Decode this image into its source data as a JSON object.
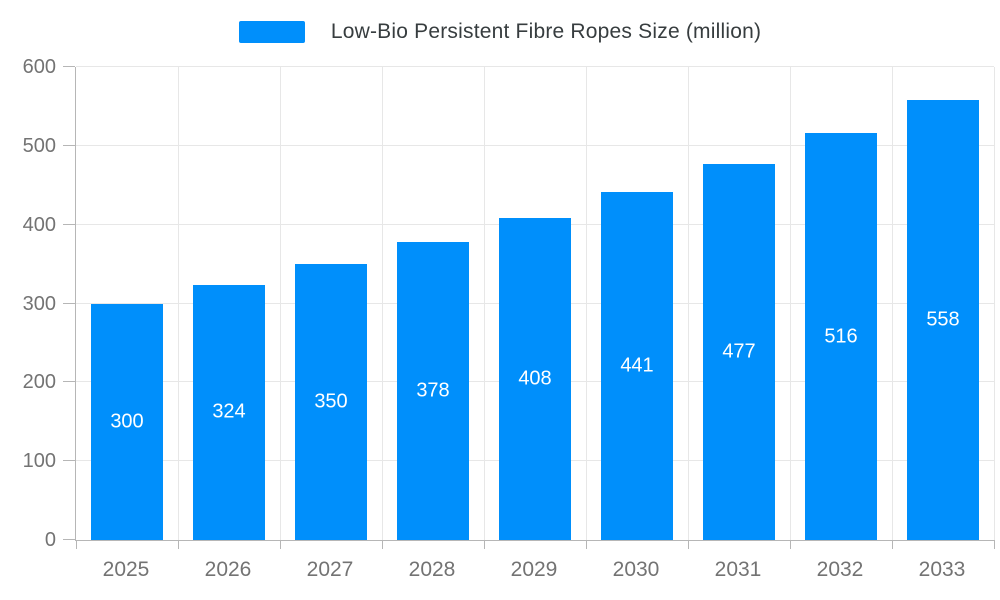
{
  "legend": {
    "label": "Low-Bio Persistent Fibre Ropes Size (million)"
  },
  "chart_data": {
    "type": "bar",
    "title": "Low-Bio Persistent Fibre Ropes Size (million)",
    "categories": [
      "2025",
      "2026",
      "2027",
      "2028",
      "2029",
      "2030",
      "2031",
      "2032",
      "2033"
    ],
    "values": [
      300,
      324,
      350,
      378,
      408,
      441,
      477,
      516,
      558
    ],
    "xlabel": "",
    "ylabel": "",
    "ylim": [
      0,
      600
    ],
    "yticks": [
      0,
      100,
      200,
      300,
      400,
      500,
      600
    ],
    "grid": true,
    "legend_position": "top",
    "bar_label_position": "center",
    "colors": {
      "bar": "#008FFB",
      "grid": "#e7e7e7",
      "axis": "#b6b6b6",
      "axis_label": "#737373",
      "legend_text": "#373d3f",
      "bar_label": "#ffffff",
      "background": "#ffffff"
    }
  }
}
